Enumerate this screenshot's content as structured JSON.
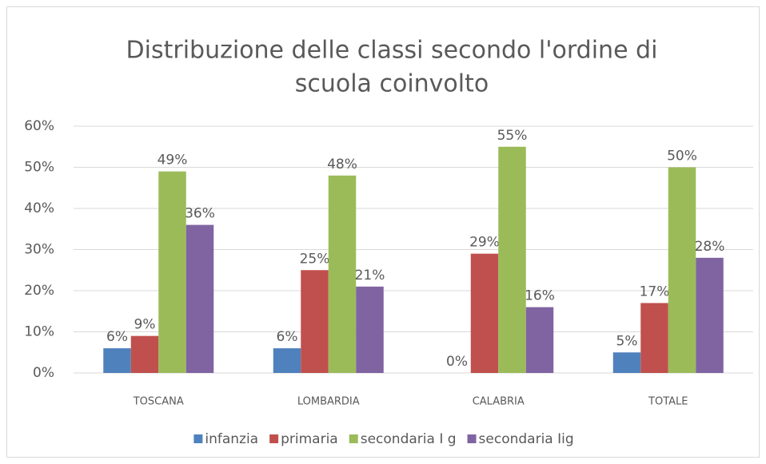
{
  "chart_data": {
    "type": "bar",
    "title": [
      "Distribuzione delle classi secondo l'ordine di",
      "scuola coinvolto"
    ],
    "categories": [
      "TOSCANA",
      "LOMBARDIA",
      "CALABRIA",
      "TOTALE"
    ],
    "series": [
      {
        "name": "infanzia",
        "color": "#4f81bd",
        "values": [
          6,
          6,
          0,
          5
        ],
        "value_labels": [
          "6%",
          "6%",
          "0%",
          "5%"
        ]
      },
      {
        "name": "primaria",
        "color": "#c0504d",
        "values": [
          9,
          25,
          29,
          17
        ],
        "value_labels": [
          "9%",
          "25%",
          "29%",
          "17%"
        ]
      },
      {
        "name": "secondaria I g",
        "color": "#9bbb59",
        "values": [
          49,
          48,
          55,
          50
        ],
        "value_labels": [
          "49%",
          "48%",
          "55%",
          "50%"
        ]
      },
      {
        "name": "secondaria Iig",
        "color": "#8064a2",
        "values": [
          36,
          21,
          16,
          28
        ],
        "value_labels": [
          "36%",
          "21%",
          "16%",
          "28%"
        ]
      }
    ],
    "ylim": [
      0,
      60
    ],
    "yticks": [
      {
        "value": 0,
        "label": "0%"
      },
      {
        "value": 10,
        "label": "10%"
      },
      {
        "value": 20,
        "label": "20%"
      },
      {
        "value": 30,
        "label": "30%"
      },
      {
        "value": 40,
        "label": "40%"
      },
      {
        "value": 50,
        "label": "50%"
      },
      {
        "value": 60,
        "label": "60%"
      }
    ],
    "grid": true,
    "legend": "bottom"
  }
}
